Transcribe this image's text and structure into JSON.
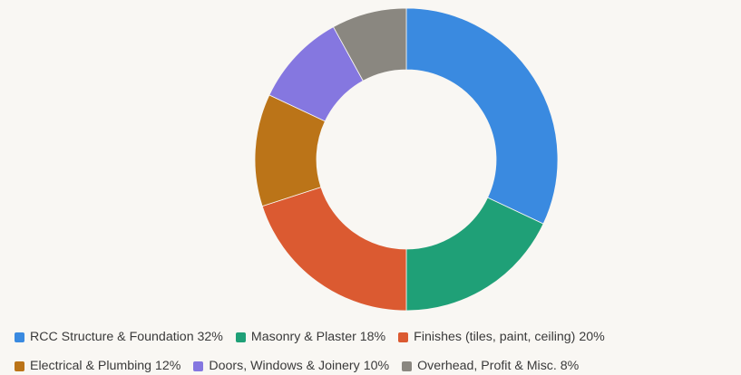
{
  "chart_data": {
    "type": "pie",
    "donut": true,
    "categories": [
      "RCC Structure & Foundation",
      "Masonry & Plaster",
      "Finishes (tiles, paint, ceiling)",
      "Electrical & Plumbing",
      "Doors, Windows & Joinery",
      "Overhead, Profit & Misc."
    ],
    "values": [
      32,
      18,
      20,
      12,
      10,
      8
    ],
    "colors": [
      "#3a8ae0",
      "#1fa077",
      "#db5a31",
      "#bb7418",
      "#8577e0",
      "#8a8780"
    ],
    "legend_position": "bottom",
    "legend": [
      {
        "label": "RCC Structure & Foundation 32%",
        "color": "#3a8ae0"
      },
      {
        "label": "Masonry & Plaster 18%",
        "color": "#1fa077"
      },
      {
        "label": "Finishes (tiles, paint, ceiling) 20%",
        "color": "#db5a31"
      },
      {
        "label": "Electrical & Plumbing 12%",
        "color": "#bb7418"
      },
      {
        "label": "Doors, Windows & Joinery 10%",
        "color": "#8577e0"
      },
      {
        "label": "Overhead, Profit & Misc. 8%",
        "color": "#8a8780"
      }
    ]
  }
}
